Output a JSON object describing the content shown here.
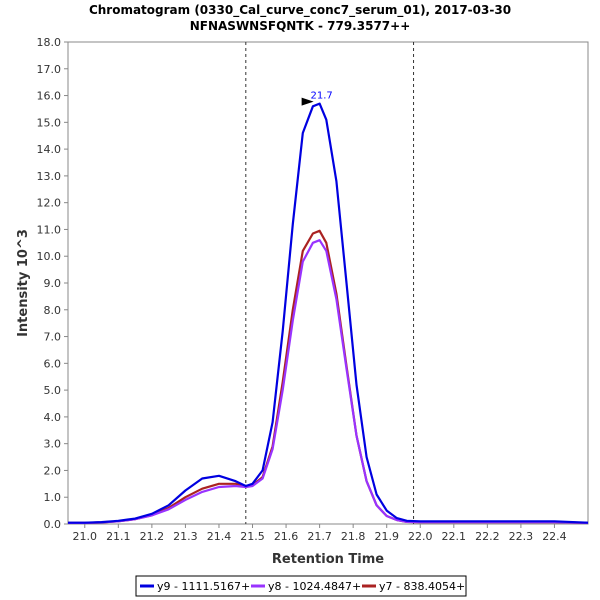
{
  "chart_data": {
    "type": "line",
    "title": "Chromatogram (0330_Cal_curve_conc7_serum_01), 2017-03-30",
    "subtitle": "NFNASWNSFQNTK - 779.3577++",
    "xlabel": "Retention Time",
    "ylabel": "Intensity 10^3",
    "xlim": [
      20.95,
      22.5
    ],
    "ylim": [
      0,
      18
    ],
    "x_ticks": [
      "21.0",
      "21.1",
      "21.2",
      "21.3",
      "21.4",
      "21.5",
      "21.6",
      "21.7",
      "21.8",
      "21.9",
      "22.0",
      "22.1",
      "22.2",
      "22.3",
      "22.4"
    ],
    "y_ticks": [
      "0.0",
      "1.0",
      "2.0",
      "3.0",
      "4.0",
      "5.0",
      "6.0",
      "7.0",
      "8.0",
      "9.0",
      "10.0",
      "11.0",
      "12.0",
      "13.0",
      "14.0",
      "15.0",
      "16.0",
      "17.0",
      "18.0"
    ],
    "grid": false,
    "boundaries": [
      21.48,
      21.98
    ],
    "annotation": {
      "text": "21.7",
      "x": 21.7,
      "y": 15.7,
      "color": "#0000ff"
    },
    "legend_position": "bottom",
    "series": [
      {
        "name": "y9 - 1111.5167+",
        "color": "#0000e0",
        "x": [
          20.95,
          21.0,
          21.05,
          21.1,
          21.15,
          21.2,
          21.25,
          21.3,
          21.35,
          21.4,
          21.45,
          21.48,
          21.5,
          21.53,
          21.56,
          21.59,
          21.62,
          21.65,
          21.68,
          21.7,
          21.72,
          21.75,
          21.78,
          21.81,
          21.84,
          21.87,
          21.9,
          21.93,
          21.96,
          22.0,
          22.05,
          22.1,
          22.2,
          22.3,
          22.4,
          22.5
        ],
        "y": [
          0.05,
          0.05,
          0.07,
          0.12,
          0.2,
          0.38,
          0.7,
          1.25,
          1.7,
          1.8,
          1.6,
          1.42,
          1.5,
          2.0,
          3.8,
          7.2,
          11.2,
          14.6,
          15.6,
          15.7,
          15.1,
          12.8,
          9.0,
          5.2,
          2.5,
          1.1,
          0.5,
          0.22,
          0.12,
          0.1,
          0.1,
          0.1,
          0.1,
          0.1,
          0.1,
          0.05
        ]
      },
      {
        "name": "y8 - 1024.4847+",
        "color": "#9933ff",
        "x": [
          20.95,
          21.0,
          21.05,
          21.1,
          21.15,
          21.2,
          21.25,
          21.3,
          21.35,
          21.4,
          21.45,
          21.48,
          21.5,
          21.53,
          21.56,
          21.59,
          21.62,
          21.65,
          21.68,
          21.7,
          21.72,
          21.75,
          21.78,
          21.81,
          21.84,
          21.87,
          21.9,
          21.93,
          21.96,
          22.0,
          22.05,
          22.1,
          22.2,
          22.3,
          22.4,
          22.5
        ],
        "y": [
          0.04,
          0.04,
          0.06,
          0.1,
          0.18,
          0.32,
          0.55,
          0.9,
          1.2,
          1.38,
          1.42,
          1.38,
          1.42,
          1.7,
          2.8,
          5.0,
          7.6,
          9.8,
          10.5,
          10.6,
          10.2,
          8.4,
          5.8,
          3.3,
          1.6,
          0.7,
          0.3,
          0.15,
          0.08,
          0.07,
          0.07,
          0.07,
          0.07,
          0.07,
          0.07,
          0.04
        ]
      },
      {
        "name": "y7 - 838.4054+",
        "color": "#aa2222",
        "x": [
          20.95,
          21.0,
          21.05,
          21.1,
          21.15,
          21.2,
          21.25,
          21.3,
          21.35,
          21.4,
          21.45,
          21.48,
          21.5,
          21.53,
          21.56,
          21.59,
          21.62,
          21.65,
          21.68,
          21.7,
          21.72,
          21.75,
          21.78,
          21.81,
          21.84,
          21.87,
          21.9,
          21.93,
          21.96,
          22.0,
          22.05,
          22.1,
          22.2,
          22.3,
          22.4,
          22.5
        ],
        "y": [
          0.04,
          0.04,
          0.06,
          0.1,
          0.18,
          0.33,
          0.6,
          1.0,
          1.32,
          1.5,
          1.5,
          1.42,
          1.45,
          1.75,
          2.9,
          5.3,
          8.0,
          10.2,
          10.85,
          10.95,
          10.5,
          8.6,
          5.9,
          3.3,
          1.6,
          0.7,
          0.3,
          0.15,
          0.08,
          0.07,
          0.07,
          0.07,
          0.07,
          0.07,
          0.07,
          0.04
        ]
      }
    ]
  }
}
